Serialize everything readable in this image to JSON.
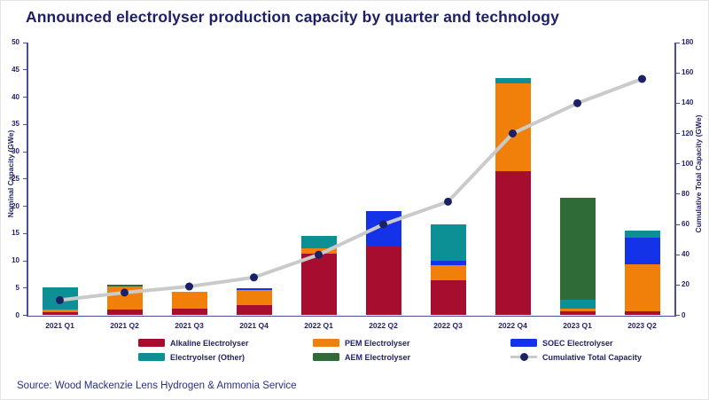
{
  "title": "Announced electrolyser production capacity by quarter and technology",
  "source": "Source: Wood Mackenzie Lens Hydrogen & Ammonia Service",
  "colors": {
    "title_text": "#1E2065",
    "axis_line": "#4A4C9C",
    "tick_text": "#232368",
    "alkaline": "#A60D2E",
    "pem": "#F0800A",
    "soec": "#1433E8",
    "aem": "#2F6B36",
    "other": "#0D8F96",
    "line_stroke": "#C9CBCA",
    "line_marker": "#1B2164"
  },
  "chart_data": {
    "type": "bar",
    "title": "Announced electrolyser production capacity by quarter and technology",
    "categories": [
      "2021 Q1",
      "2021 Q2",
      "2021 Q3",
      "2021 Q4",
      "2022 Q1",
      "2022 Q2",
      "2022 Q3",
      "2022 Q4",
      "2023 Q1",
      "2023 Q2"
    ],
    "left_axis": {
      "label": "Nominal Capacity (GWe)",
      "min": 0,
      "max": 50,
      "step": 5
    },
    "right_axis": {
      "label": "Cumulative Total Capacity (GWe)",
      "min": 0,
      "max": 180,
      "step": 20
    },
    "stack_order": "bottom-to-top",
    "series": [
      {
        "name": "Alkaline Electrolyser",
        "color_key": "alkaline",
        "values": [
          0.5,
          1.1,
          1.2,
          1.8,
          11.3,
          12.8,
          6.4,
          26.5,
          0.7,
          0.7
        ]
      },
      {
        "name": "PEM Electrolyser",
        "color_key": "pem",
        "values": [
          0.5,
          4.2,
          3.1,
          2.8,
          0.9,
          0,
          2.8,
          16.0,
          0.5,
          8.7
        ]
      },
      {
        "name": "SOEC Electrolyser",
        "color_key": "soec",
        "values": [
          0,
          0,
          0,
          0.4,
          0,
          6.3,
          0.8,
          0,
          0,
          4.8
        ]
      },
      {
        "name": "Electryolser (Other)",
        "color_key": "other",
        "values": [
          4.1,
          0,
          0,
          0,
          2.3,
          0,
          6.6,
          1.0,
          1.6,
          1.3
        ]
      },
      {
        "name": "AEM Electrolyser",
        "color_key": "aem",
        "values": [
          0,
          0.3,
          0,
          0,
          0,
          0,
          0,
          0,
          18.7,
          0
        ]
      }
    ],
    "line_series": {
      "name": "Cumulative Total Capacity",
      "axis": "right",
      "values": [
        10,
        15,
        19,
        25,
        40,
        60,
        75,
        120,
        140,
        156
      ]
    },
    "grid": false,
    "legend_position": "bottom"
  },
  "legend": {
    "columns": [
      {
        "items": [
          {
            "label": "Alkaline Electrolyser",
            "swatch": "alkaline"
          },
          {
            "label": "Electryolser (Other)",
            "swatch": "other"
          }
        ]
      },
      {
        "items": [
          {
            "label": "PEM Electrolyser",
            "swatch": "pem"
          },
          {
            "label": "AEM Electrolyser",
            "swatch": "aem"
          }
        ]
      },
      {
        "items": [
          {
            "label": "SOEC Electrolyser",
            "swatch": "soec"
          },
          {
            "label": "Cumulative Total Capacity",
            "swatch": "line"
          }
        ]
      }
    ]
  }
}
